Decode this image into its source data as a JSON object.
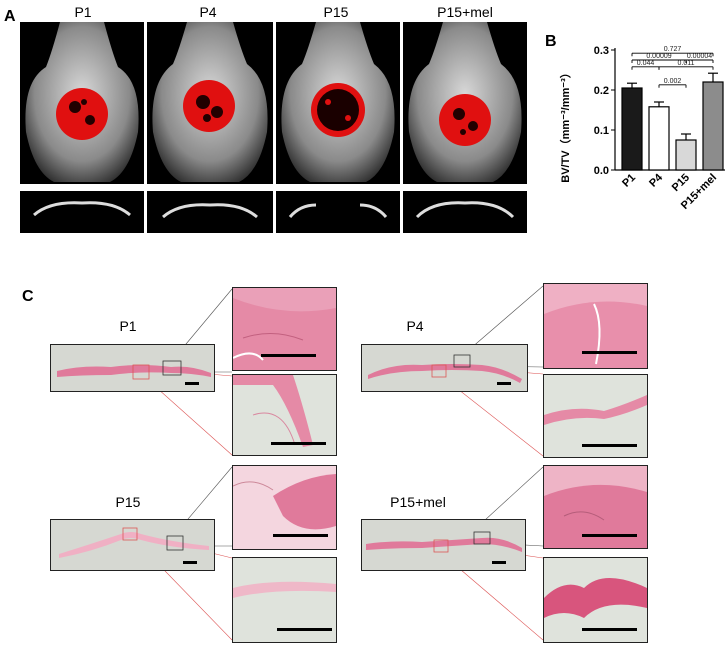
{
  "panels": {
    "a": "A",
    "b": "B",
    "c": "C"
  },
  "ct_groups": [
    "P1",
    "P4",
    "P15",
    "P15+mel"
  ],
  "chart_data": {
    "type": "bar",
    "categories": [
      "P1",
      "P4",
      "P15",
      "P15+mel"
    ],
    "values": [
      0.205,
      0.158,
      0.075,
      0.22
    ],
    "errors": [
      0.012,
      0.012,
      0.015,
      0.022
    ],
    "bar_colors": [
      "#1a1a1a",
      "#ffffff",
      "#d8d8d8",
      "#8c8c8c"
    ],
    "ylabel": "BV/TV（mm⁻³/mm⁻³）",
    "ylim": [
      0,
      0.3
    ],
    "yticks": [
      "0.0",
      "0.1",
      "0.2",
      "0.3"
    ],
    "comparisons": [
      {
        "pair": [
          "P1",
          "P15+mel"
        ],
        "label": "0.727"
      },
      {
        "pair": [
          "P1",
          "P15"
        ],
        "label": "0.00009"
      },
      {
        "pair": [
          "P15",
          "P15+mel"
        ],
        "label": "0.00004"
      },
      {
        "pair": [
          "P1",
          "P4"
        ],
        "label": "0.044"
      },
      {
        "pair": [
          "P4",
          "P15+mel"
        ],
        "label": "0.011"
      },
      {
        "pair": [
          "P4",
          "P15"
        ],
        "label": "0.002"
      }
    ]
  },
  "he_groups": [
    "P1",
    "P4",
    "P15",
    "P15+mel"
  ],
  "colors": {
    "he_pink": "#e07a9b",
    "he_light": "#f2c6d2",
    "ct_red": "#e01010"
  }
}
